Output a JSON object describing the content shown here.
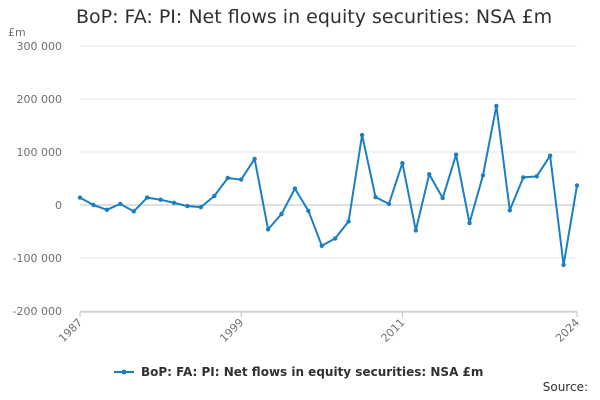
{
  "chart_data": {
    "type": "line",
    "title": "BoP: FA: PI: Net flows in equity securities: NSA £m",
    "ylabel": "£m",
    "xlabel": "",
    "ylim": [
      -200000,
      300000
    ],
    "yticks": [
      -200000,
      -100000,
      0,
      100000,
      200000,
      300000
    ],
    "ytick_labels": [
      "-200 000",
      "-100 000",
      "0",
      "100 000",
      "200 000",
      "300 000"
    ],
    "xlim": [
      1987,
      2024
    ],
    "xticks": [
      1987,
      1999,
      2011,
      2024
    ],
    "xtick_labels": [
      "1987",
      "1999",
      "2011",
      "2024"
    ],
    "grid": "horizontal",
    "legend_position": "bottom",
    "colors": {
      "series": "#206095",
      "line": "#1b7fc4",
      "axis": "#bfbfbf",
      "grid": "#e6e6e6"
    },
    "series": [
      {
        "name": "BoP: FA: PI: Net flows in equity securities: NSA £m",
        "x": [
          1987,
          1988,
          1989,
          1990,
          1991,
          1992,
          1993,
          1994,
          1995,
          1996,
          1997,
          1998,
          1999,
          2000,
          2001,
          2002,
          2003,
          2004,
          2005,
          2006,
          2007,
          2008,
          2009,
          2010,
          2011,
          2012,
          2013,
          2014,
          2015,
          2016,
          2017,
          2018,
          2019,
          2020,
          2021,
          2022,
          2023,
          2024
        ],
        "values": [
          14000,
          0,
          -9000,
          2000,
          -12000,
          14000,
          10000,
          4000,
          -2000,
          -4000,
          17000,
          51000,
          48000,
          87000,
          -46000,
          -17000,
          31000,
          -11000,
          -77000,
          -63000,
          -31000,
          132000,
          15000,
          2000,
          79000,
          -48000,
          58000,
          13000,
          95000,
          -34000,
          56000,
          187000,
          -10000,
          52000,
          54000,
          93000,
          -113000,
          37000
        ]
      }
    ]
  },
  "source_label": "Source:"
}
